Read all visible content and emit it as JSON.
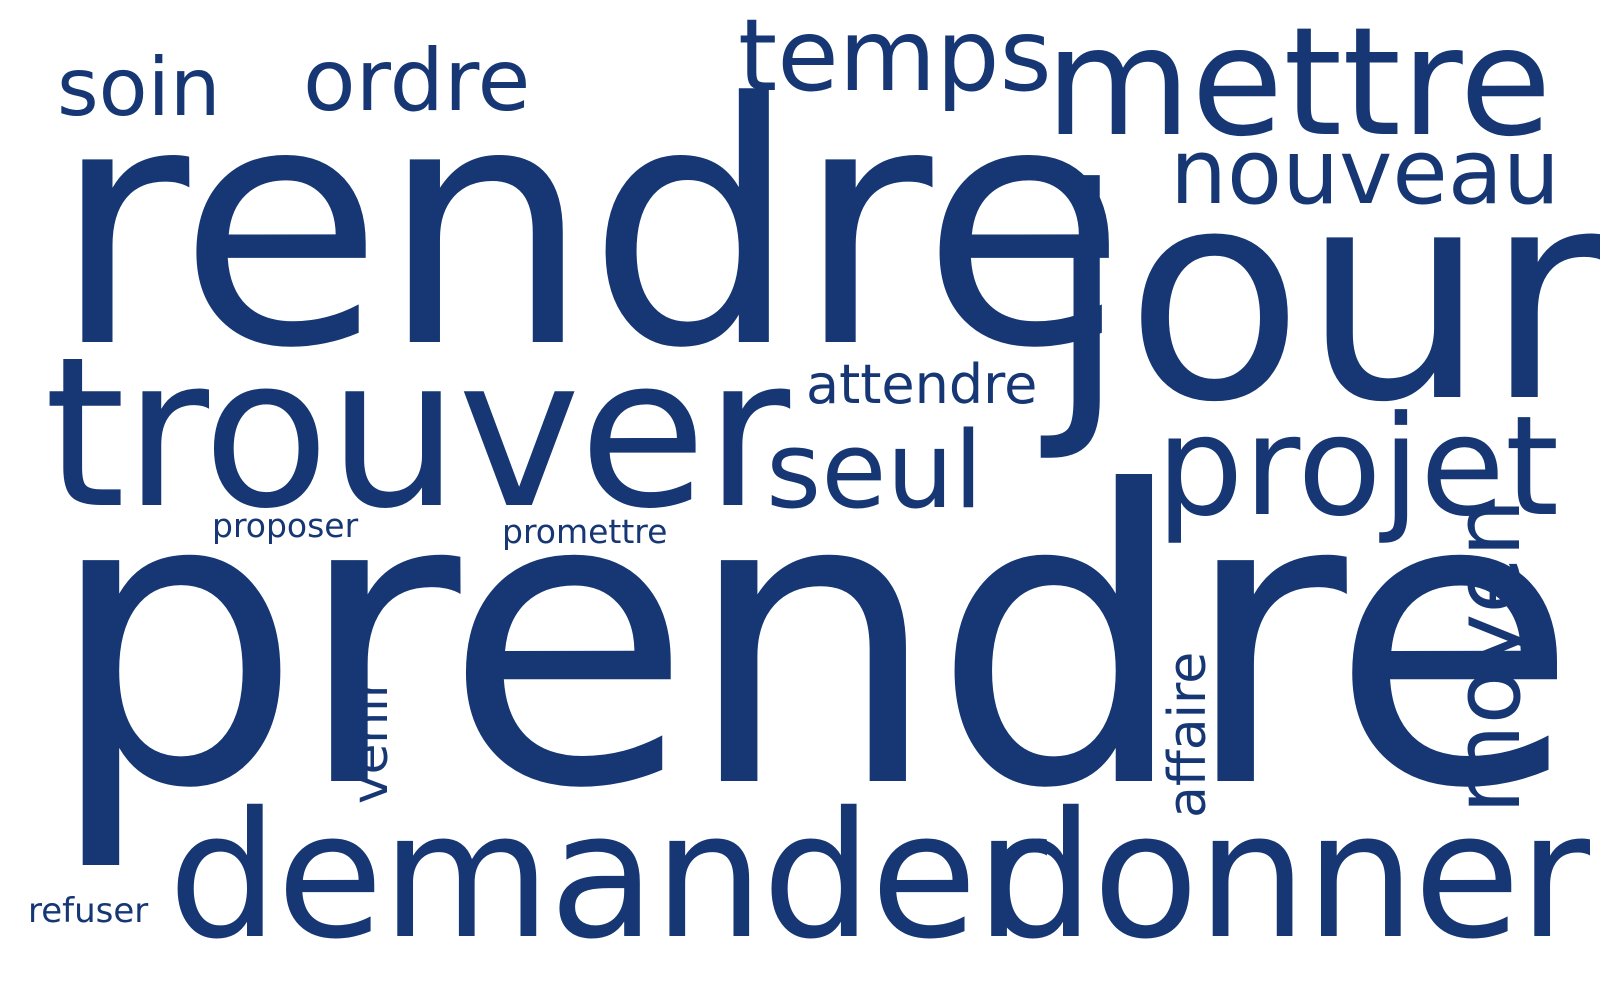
{
  "word_cloud": {
    "text_color": "#163774",
    "background_color": "#ffffff",
    "words": {
      "rendre": "rendre",
      "prendre": "prendre",
      "jour": "jour",
      "trouver": "trouver",
      "demander": "demander",
      "donner": "donner",
      "mettre": "mettre",
      "projet": "projet",
      "temps": "temps",
      "seul": "seul",
      "moyen": "moyen",
      "nouveau": "nouveau",
      "ordre": "ordre",
      "soin": "soin",
      "attendre": "attendre",
      "affaire": "affaire",
      "venir": "venir",
      "refuser": "refuser",
      "proposer": "proposer",
      "promettre": "promettre"
    }
  }
}
